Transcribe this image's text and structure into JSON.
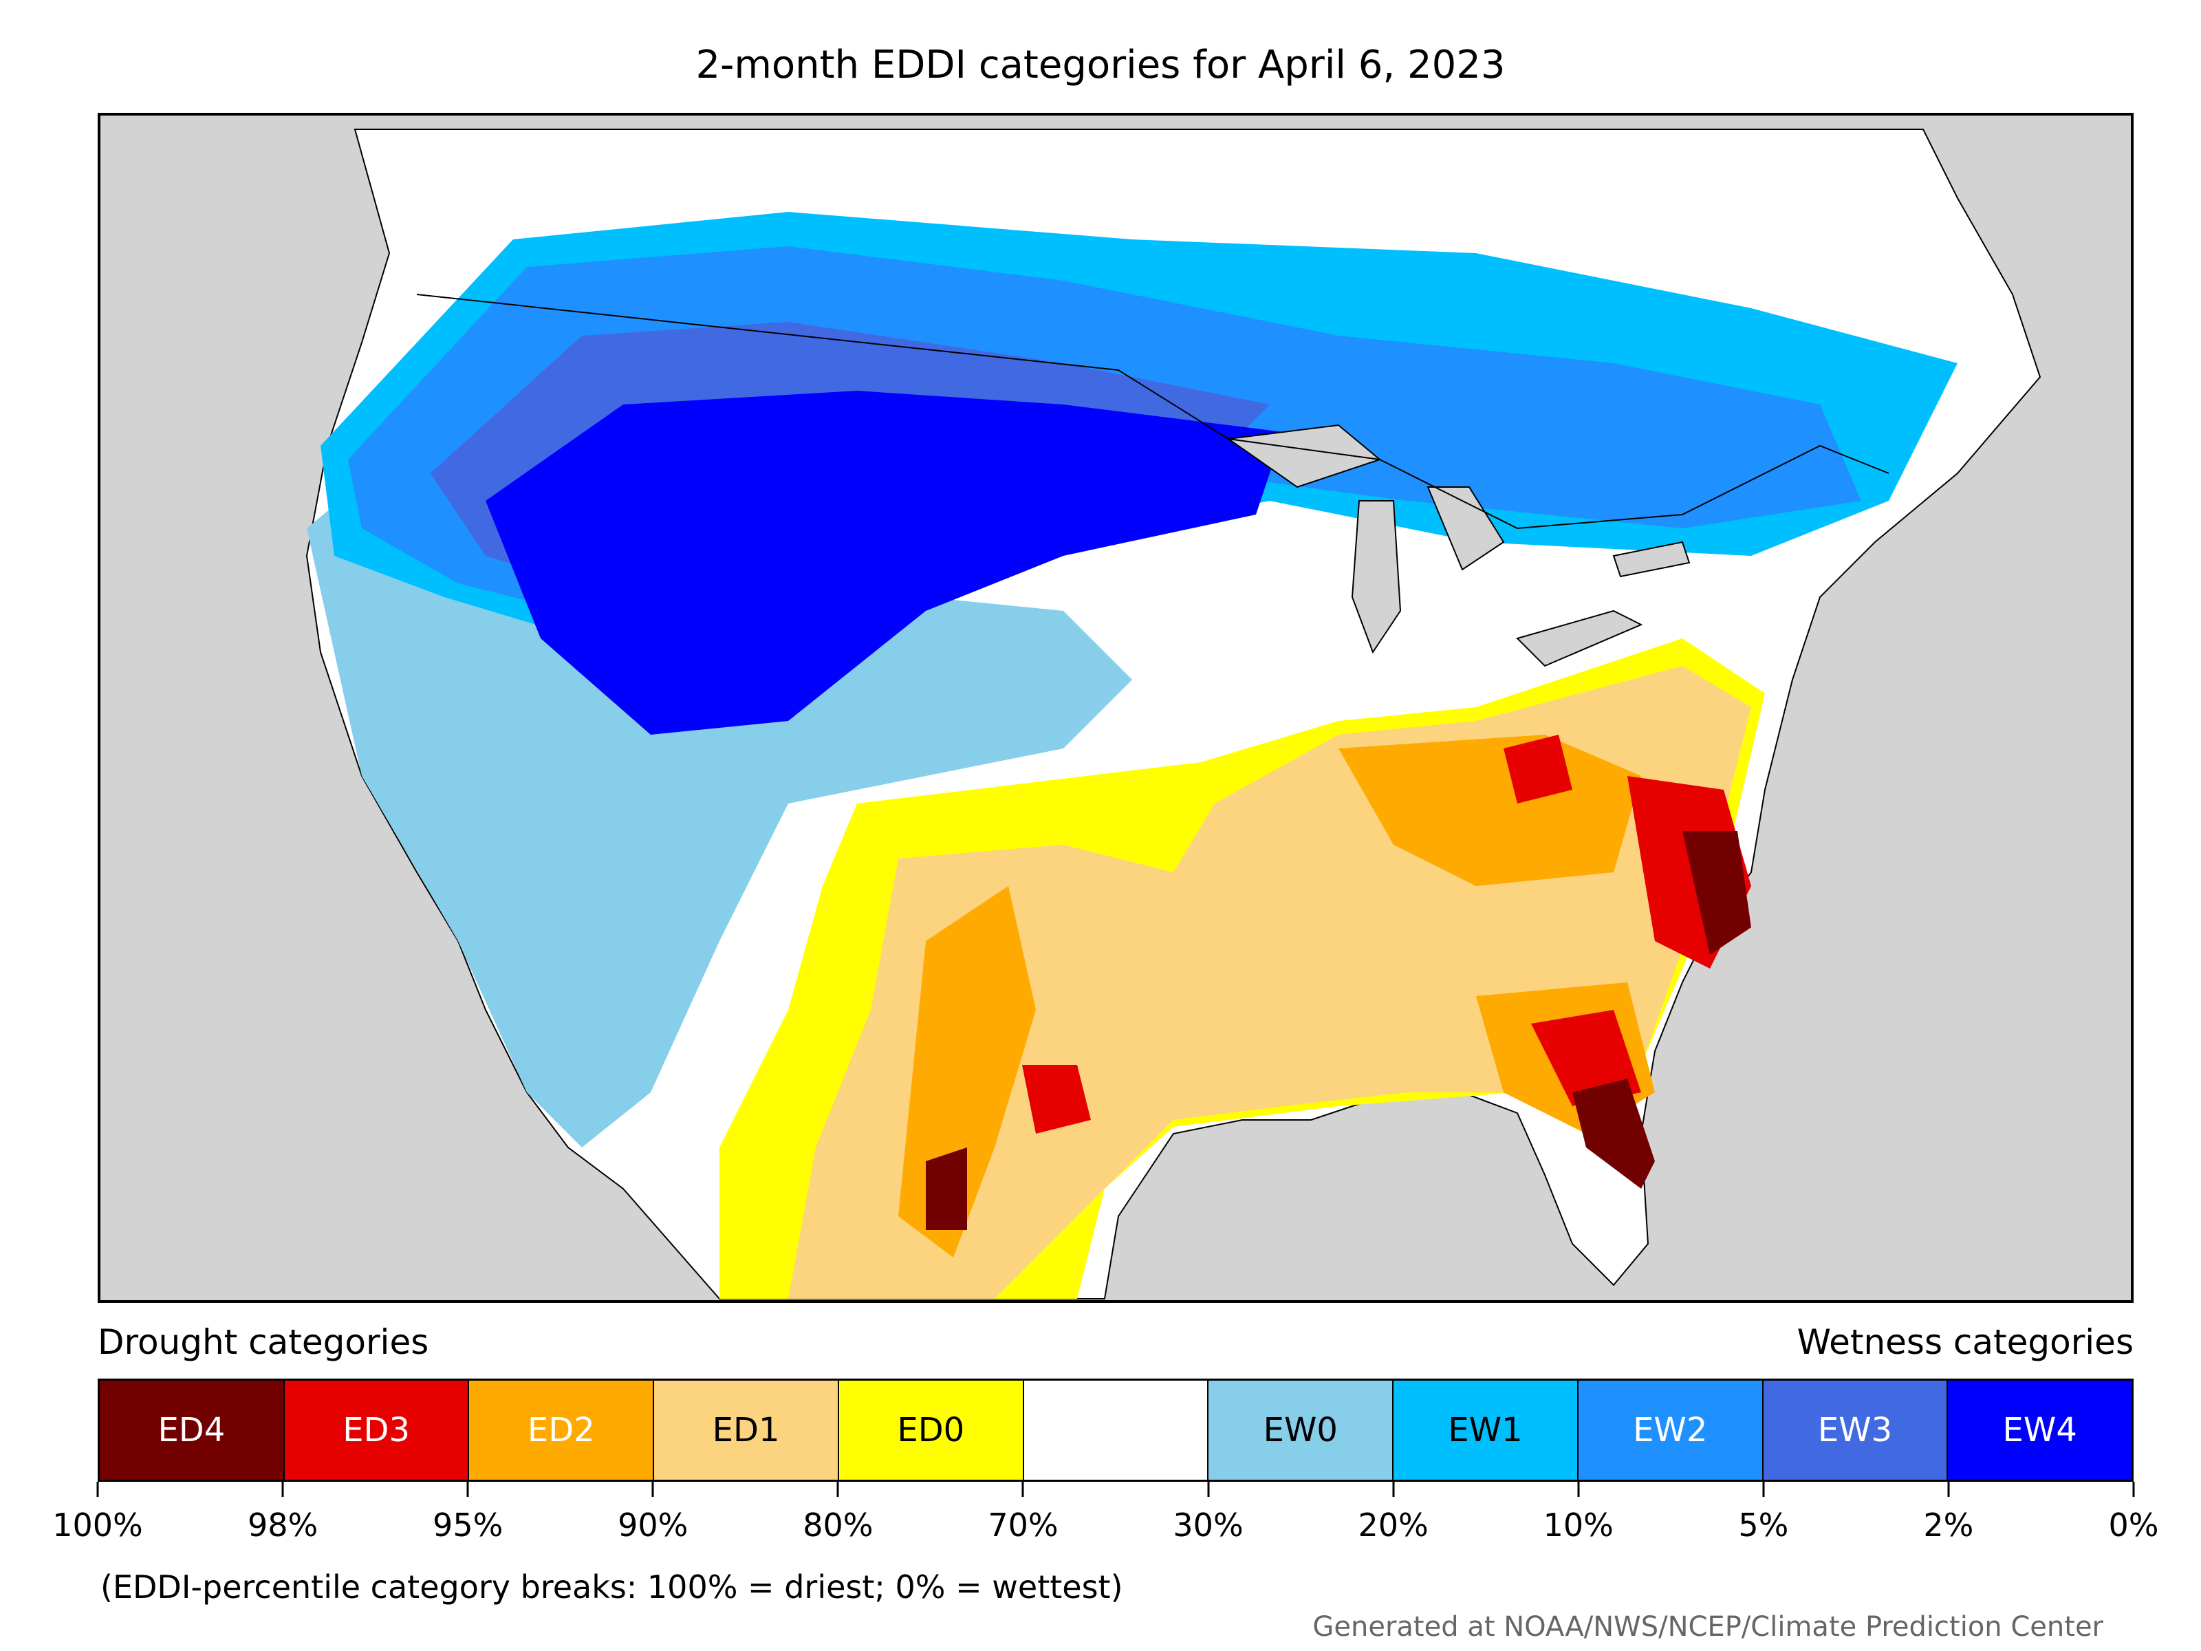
{
  "title": "2-month EDDI categories for April 6, 2023",
  "legend": {
    "drought_label": "Drought categories",
    "wetness_label": "Wetness categories",
    "categories": [
      {
        "label": "ED4",
        "color": "#730000",
        "text_color": "#ffffff"
      },
      {
        "label": "ED3",
        "color": "#e60000",
        "text_color": "#ffffff"
      },
      {
        "label": "ED2",
        "color": "#ffaa00",
        "text_color": "#ffffff"
      },
      {
        "label": "ED1",
        "color": "#fcd37f",
        "text_color": "#000000"
      },
      {
        "label": "ED0",
        "color": "#ffff00",
        "text_color": "#000000"
      },
      {
        "label": "",
        "color": "#ffffff",
        "text_color": "#000000"
      },
      {
        "label": "EW0",
        "color": "#87ceeb",
        "text_color": "#000000"
      },
      {
        "label": "EW1",
        "color": "#00bfff",
        "text_color": "#000000"
      },
      {
        "label": "EW2",
        "color": "#1e90ff",
        "text_color": "#ffffff"
      },
      {
        "label": "EW3",
        "color": "#4169e1",
        "text_color": "#ffffff"
      },
      {
        "label": "EW4",
        "color": "#0000ff",
        "text_color": "#ffffff"
      }
    ],
    "tick_labels": [
      "100%",
      "98%",
      "95%",
      "90%",
      "80%",
      "70%",
      "30%",
      "20%",
      "10%",
      "5%",
      "2%",
      "0%"
    ]
  },
  "note": "(EDDI-percentile category breaks: 100% = driest; 0% = wettest)",
  "credit": "Generated at NOAA/NWS/NCEP/Climate Prediction Center",
  "map": {
    "background_color": "#d3d3d3",
    "land_default_color": "#ffffff"
  }
}
